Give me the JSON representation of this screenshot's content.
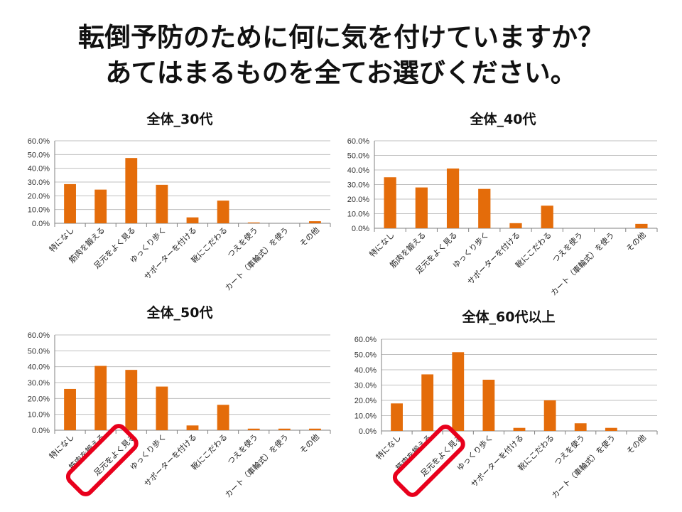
{
  "slide": {
    "title_line1": "転倒予防のために何に気を付けていますか？",
    "title_line2": "あてはまるものを全てお選びください。"
  },
  "colors": {
    "bar": "#E46C0A",
    "highlight": "#E8001C",
    "grid": "#BFBFBF"
  },
  "chart_data": [
    {
      "type": "bar",
      "title": "全体_30代",
      "categories": [
        "特になし",
        "筋肉を鍛える",
        "足元をよく見る",
        "ゆっくり歩く",
        "サポーターを付ける",
        "靴にこだわる",
        "つえを使う",
        "カート（車輪式）を使う",
        "その他"
      ],
      "values": [
        28.5,
        24.5,
        47.5,
        28.0,
        4.3,
        16.5,
        0.6,
        0.0,
        1.5
      ],
      "yticks": [
        "0.0%",
        "10.0%",
        "20.0%",
        "30.0%",
        "40.0%",
        "50.0%",
        "60.0%"
      ],
      "ylim": [
        0,
        60
      ],
      "grid": true
    },
    {
      "type": "bar",
      "title": "全体_40代",
      "categories": [
        "特になし",
        "筋肉を鍛える",
        "足元をよく見る",
        "ゆっくり歩く",
        "サポーターを付ける",
        "靴にこだわる",
        "つえを使う",
        "カート（車輪式）を使う",
        "その他"
      ],
      "values": [
        35.0,
        28.0,
        41.0,
        27.0,
        3.5,
        15.5,
        0.0,
        0.0,
        3.0
      ],
      "yticks": [
        "0.0%",
        "10.0%",
        "20.0%",
        "30.0%",
        "40.0%",
        "50.0%",
        "60.0%"
      ],
      "ylim": [
        0,
        60
      ],
      "grid": true
    },
    {
      "type": "bar",
      "title": "全体_50代",
      "categories": [
        "特になし",
        "筋肉を鍛える",
        "足元をよく見る",
        "ゆっくり歩く",
        "サポーターを付ける",
        "靴にこだわる",
        "つえを使う",
        "カート（車輪式）を使う",
        "その他"
      ],
      "values": [
        26.0,
        40.5,
        38.0,
        27.5,
        3.0,
        16.0,
        1.0,
        1.0,
        1.0
      ],
      "yticks": [
        "0.0%",
        "10.0%",
        "20.0%",
        "30.0%",
        "40.0%",
        "50.0%",
        "60.0%"
      ],
      "ylim": [
        0,
        60
      ],
      "grid": true,
      "highlight": "筋肉を鍛える"
    },
    {
      "type": "bar",
      "title": "全体_60代以上",
      "categories": [
        "特になし",
        "筋肉を鍛える",
        "足元をよく見る",
        "ゆっくり歩く",
        "サポーターを付ける",
        "靴にこだわる",
        "つえを使う",
        "カート（車輪式）を使う",
        "その他"
      ],
      "values": [
        18.0,
        37.0,
        51.5,
        33.5,
        2.0,
        20.0,
        5.0,
        2.0,
        0.0
      ],
      "yticks": [
        "0.0%",
        "10.0%",
        "20.0%",
        "30.0%",
        "40.0%",
        "50.0%",
        "60.0%"
      ],
      "ylim": [
        0,
        60
      ],
      "grid": true,
      "highlight": "筋肉を鍛える"
    }
  ]
}
